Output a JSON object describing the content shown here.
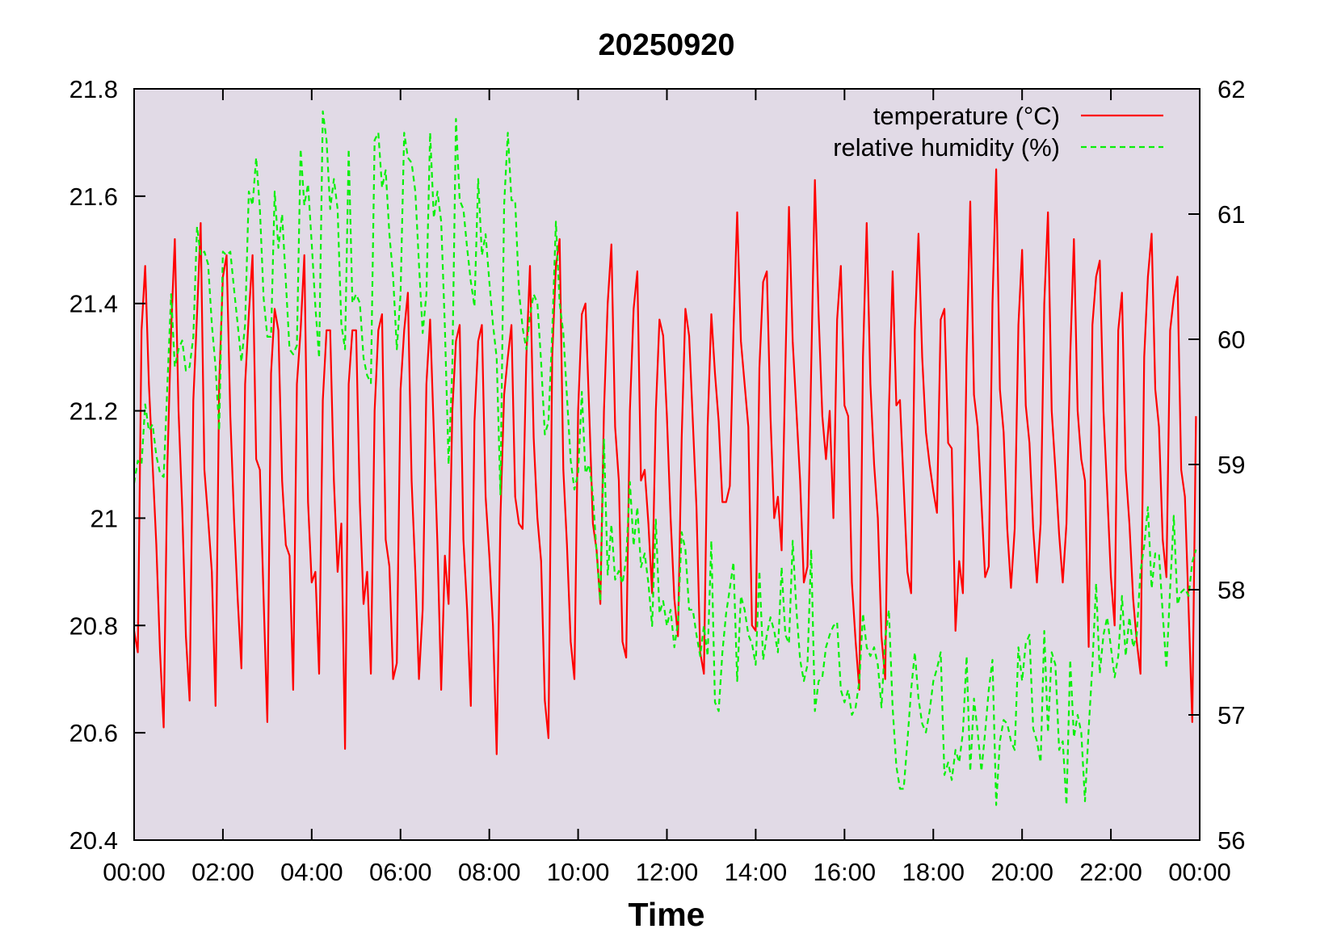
{
  "chart_data": {
    "type": "line",
    "title": "20250920",
    "xlabel": "Time",
    "xlim": [
      "00:00",
      "24:00"
    ],
    "ylim": [
      20.4,
      21.8
    ],
    "y2lim": [
      56,
      62
    ],
    "xticks": [
      "00:00",
      "02:00",
      "04:00",
      "06:00",
      "08:00",
      "10:00",
      "12:00",
      "14:00",
      "16:00",
      "18:00",
      "20:00",
      "22:00",
      "00:00"
    ],
    "yticks": [
      "20.4",
      "20.6",
      "20.8",
      "21",
      "21.2",
      "21.4",
      "21.6",
      "21.8"
    ],
    "y2ticks": [
      "56",
      "57",
      "58",
      "59",
      "60",
      "61",
      "62"
    ],
    "grid": false,
    "legend_position": "top-right",
    "plot_background": "#e1dae6",
    "x": [
      "00:00",
      "00:05",
      "00:10",
      "00:15",
      "00:20",
      "00:25",
      "00:30",
      "00:35",
      "00:40",
      "00:45",
      "00:50",
      "00:55",
      "01:00",
      "01:05",
      "01:10",
      "01:15",
      "01:20",
      "01:25",
      "01:30",
      "01:35",
      "01:40",
      "01:45",
      "01:50",
      "01:55",
      "02:00",
      "02:05",
      "02:10",
      "02:15",
      "02:20",
      "02:25",
      "02:30",
      "02:35",
      "02:40",
      "02:45",
      "02:50",
      "02:55",
      "03:00",
      "03:05",
      "03:10",
      "03:15",
      "03:20",
      "03:25",
      "03:30",
      "03:35",
      "03:40",
      "03:45",
      "03:50",
      "03:55",
      "04:00",
      "04:05",
      "04:10",
      "04:15",
      "04:20",
      "04:25",
      "04:30",
      "04:35",
      "04:40",
      "04:45",
      "04:50",
      "04:55",
      "05:00",
      "05:05",
      "05:10",
      "05:15",
      "05:20",
      "05:25",
      "05:30",
      "05:35",
      "05:40",
      "05:45",
      "05:50",
      "05:55",
      "06:00",
      "06:05",
      "06:10",
      "06:15",
      "06:20",
      "06:25",
      "06:30",
      "06:35",
      "06:40",
      "06:45",
      "06:50",
      "06:55",
      "07:00",
      "07:05",
      "07:10",
      "07:15",
      "07:20",
      "07:25",
      "07:30",
      "07:35",
      "07:40",
      "07:45",
      "07:50",
      "07:55",
      "08:00",
      "08:05",
      "08:10",
      "08:15",
      "08:20",
      "08:25",
      "08:30",
      "08:35",
      "08:40",
      "08:45",
      "08:50",
      "08:55",
      "09:00",
      "09:05",
      "09:10",
      "09:15",
      "09:20",
      "09:25",
      "09:30",
      "09:35",
      "09:40",
      "09:45",
      "09:50",
      "09:55",
      "10:00",
      "10:05",
      "10:10",
      "10:15",
      "10:20",
      "10:25",
      "10:30",
      "10:35",
      "10:40",
      "10:45",
      "10:50",
      "10:55",
      "11:00",
      "11:05",
      "11:10",
      "11:15",
      "11:20",
      "11:25",
      "11:30",
      "11:35",
      "11:40",
      "11:45",
      "11:50",
      "11:55",
      "12:00",
      "12:05",
      "12:10",
      "12:15",
      "12:20",
      "12:25",
      "12:30",
      "12:35",
      "12:40",
      "12:45",
      "12:50",
      "12:55",
      "13:00",
      "13:05",
      "13:10",
      "13:15",
      "13:20",
      "13:25",
      "13:30",
      "13:35",
      "13:40",
      "13:45",
      "13:50",
      "13:55",
      "14:00",
      "14:05",
      "14:10",
      "14:15",
      "14:20",
      "14:25",
      "14:30",
      "14:35",
      "14:40",
      "14:45",
      "14:50",
      "14:55",
      "15:00",
      "15:05",
      "15:10",
      "15:15",
      "15:20",
      "15:25",
      "15:30",
      "15:35",
      "15:40",
      "15:45",
      "15:50",
      "15:55",
      "16:00",
      "16:05",
      "16:10",
      "16:15",
      "16:20",
      "16:25",
      "16:30",
      "16:35",
      "16:40",
      "16:45",
      "16:50",
      "16:55",
      "17:00",
      "17:05",
      "17:10",
      "17:15",
      "17:20",
      "17:25",
      "17:30",
      "17:35",
      "17:40",
      "17:45",
      "17:50",
      "17:55",
      "18:00",
      "18:05",
      "18:10",
      "18:15",
      "18:20",
      "18:25",
      "18:30",
      "18:35",
      "18:40",
      "18:45",
      "18:50",
      "18:55",
      "19:00",
      "19:05",
      "19:10",
      "19:15",
      "19:20",
      "19:25",
      "19:30",
      "19:35",
      "19:40",
      "19:45",
      "19:50",
      "19:55",
      "20:00",
      "20:05",
      "20:10",
      "20:15",
      "20:20",
      "20:25",
      "20:30",
      "20:35",
      "20:40",
      "20:45",
      "20:50",
      "20:55",
      "21:00",
      "21:05",
      "21:10",
      "21:15",
      "21:20",
      "21:25",
      "21:30",
      "21:35",
      "21:40",
      "21:45",
      "21:50",
      "21:55",
      "22:00",
      "22:05",
      "22:10",
      "22:15",
      "22:20",
      "22:25",
      "22:30",
      "22:35",
      "22:40",
      "22:45",
      "22:50",
      "22:55",
      "23:00",
      "23:05",
      "23:10",
      "23:15",
      "23:20",
      "23:25",
      "23:30",
      "23:35",
      "23:40",
      "23:45",
      "23:50",
      "23:55"
    ],
    "series": [
      {
        "name": "temperature (°C)",
        "axis": "left",
        "color": "#ff0000",
        "style": "solid",
        "values": [
          20.79,
          20.75,
          21.35,
          21.47,
          21.25,
          21.1,
          20.95,
          20.75,
          20.61,
          21.1,
          21.35,
          21.52,
          21.2,
          21.02,
          20.78,
          20.66,
          21.22,
          21.38,
          21.55,
          21.09,
          21.0,
          20.9,
          20.65,
          21.25,
          21.45,
          21.49,
          21.19,
          21.0,
          20.85,
          20.72,
          21.25,
          21.38,
          21.49,
          21.11,
          21.09,
          20.85,
          20.62,
          21.27,
          21.39,
          21.35,
          21.07,
          20.95,
          20.93,
          20.68,
          21.25,
          21.35,
          21.49,
          21.03,
          20.88,
          20.9,
          20.71,
          21.22,
          21.35,
          21.35,
          21.07,
          20.9,
          20.99,
          20.57,
          21.25,
          21.35,
          21.35,
          21.03,
          20.84,
          20.9,
          20.71,
          21.2,
          21.35,
          21.38,
          20.96,
          20.91,
          20.7,
          20.73,
          21.24,
          21.35,
          21.42,
          21.07,
          20.9,
          20.7,
          20.83,
          21.25,
          21.37,
          21.16,
          20.95,
          20.68,
          20.93,
          20.84,
          21.2,
          21.33,
          21.36,
          20.96,
          20.83,
          20.65,
          21.18,
          21.33,
          21.36,
          21.04,
          20.93,
          20.8,
          20.56,
          21.0,
          21.23,
          21.3,
          21.36,
          21.04,
          20.99,
          20.98,
          21.3,
          21.47,
          21.15,
          21.0,
          20.92,
          20.66,
          20.59,
          21.3,
          21.47,
          21.52,
          21.09,
          20.95,
          20.77,
          20.7,
          21.2,
          21.38,
          21.4,
          21.2,
          20.99,
          20.94,
          20.84,
          21.2,
          21.4,
          21.51,
          21.17,
          21.07,
          20.77,
          20.74,
          21.2,
          21.39,
          21.46,
          21.07,
          21.09,
          20.99,
          20.86,
          21.2,
          21.37,
          21.34,
          21.19,
          21.0,
          20.85,
          20.78,
          21.15,
          21.39,
          21.34,
          21.18,
          21.02,
          20.75,
          20.71,
          21.17,
          21.38,
          21.27,
          21.18,
          21.03,
          21.03,
          21.06,
          21.35,
          21.57,
          21.33,
          21.25,
          21.17,
          20.8,
          20.79,
          21.28,
          21.44,
          21.46,
          21.19,
          21.0,
          21.04,
          20.94,
          21.28,
          21.58,
          21.33,
          21.2,
          21.07,
          20.88,
          20.91,
          21.28,
          21.63,
          21.38,
          21.19,
          21.11,
          21.2,
          21.0,
          21.37,
          21.47,
          21.21,
          21.19,
          20.88,
          20.77,
          20.68,
          21.3,
          21.55,
          21.25,
          21.1,
          21.0,
          20.78,
          20.7,
          21.2,
          21.46,
          21.21,
          21.22,
          21.06,
          20.9,
          20.86,
          21.35,
          21.53,
          21.3,
          21.16,
          21.1,
          21.05,
          21.01,
          21.37,
          21.39,
          21.14,
          21.13,
          20.79,
          20.92,
          20.86,
          21.3,
          21.59,
          21.23,
          21.17,
          21.03,
          20.89,
          20.91,
          21.4,
          21.65,
          21.24,
          21.16,
          20.98,
          20.87,
          20.98,
          21.36,
          21.5,
          21.21,
          21.14,
          20.98,
          20.88,
          20.99,
          21.4,
          21.57,
          21.2,
          21.09,
          20.97,
          20.88,
          20.99,
          21.3,
          21.52,
          21.2,
          21.11,
          21.07,
          20.76,
          21.36,
          21.45,
          21.48,
          21.2,
          21.05,
          20.89,
          20.8,
          21.35,
          21.42,
          21.09,
          20.99,
          20.85,
          20.77,
          20.71,
          21.3,
          21.45,
          21.53,
          21.24,
          21.17,
          20.96,
          20.89,
          21.35,
          21.41,
          21.45,
          21.09,
          21.04,
          20.83,
          20.62,
          21.19
        ]
      },
      {
        "name": "relative humidity (%)",
        "axis": "right",
        "color": "#08f008",
        "style": "dashed",
        "values": [
          58.85,
          59.03,
          59.0,
          59.48,
          59.27,
          59.32,
          59.07,
          58.93,
          58.9,
          59.64,
          60.36,
          59.78,
          59.92,
          59.99,
          59.75,
          59.78,
          60.02,
          60.9,
          60.67,
          60.7,
          60.6,
          60.12,
          59.78,
          59.27,
          60.7,
          60.67,
          60.7,
          60.4,
          60.12,
          59.82,
          60.12,
          61.18,
          61.07,
          61.45,
          61.04,
          60.33,
          60.02,
          60.02,
          61.18,
          60.73,
          61.0,
          60.46,
          59.92,
          59.88,
          59.95,
          61.52,
          61.07,
          61.24,
          60.77,
          60.26,
          59.85,
          61.82,
          61.59,
          61.04,
          61.28,
          61.04,
          60.12,
          59.92,
          61.52,
          60.29,
          60.36,
          60.29,
          59.85,
          59.71,
          59.65,
          61.59,
          61.65,
          61.21,
          61.35,
          60.84,
          60.5,
          59.92,
          60.36,
          61.65,
          61.45,
          61.41,
          61.18,
          60.6,
          60.05,
          60.36,
          61.65,
          60.97,
          61.18,
          60.94,
          60.09,
          59.0,
          59.78,
          61.76,
          61.11,
          61.04,
          60.73,
          60.46,
          60.26,
          61.28,
          60.67,
          60.84,
          60.46,
          60.12,
          59.85,
          58.76,
          61.07,
          61.65,
          61.11,
          61.11,
          60.39,
          60.09,
          59.92,
          60.19,
          60.36,
          60.29,
          59.82,
          59.24,
          59.34,
          60.05,
          60.94,
          60.29,
          60.05,
          59.54,
          59.03,
          58.8,
          58.93,
          59.58,
          58.93,
          59.0,
          58.76,
          58.29,
          57.91,
          59.2,
          58.12,
          58.52,
          58.08,
          58.15,
          58.05,
          58.25,
          58.86,
          58.35,
          58.66,
          58.18,
          58.29,
          58.05,
          57.71,
          58.56,
          57.81,
          57.91,
          57.71,
          57.84,
          57.54,
          57.74,
          58.46,
          58.32,
          57.84,
          57.84,
          57.64,
          57.47,
          57.71,
          57.47,
          58.39,
          57.1,
          57.03,
          57.5,
          57.81,
          58.01,
          58.22,
          57.27,
          57.95,
          57.84,
          57.64,
          57.57,
          57.4,
          58.15,
          57.44,
          57.64,
          57.78,
          57.67,
          57.5,
          58.18,
          57.64,
          57.57,
          58.39,
          57.84,
          57.44,
          57.27,
          57.4,
          58.32,
          57.03,
          57.27,
          57.3,
          57.54,
          57.64,
          57.71,
          57.74,
          57.2,
          57.1,
          57.2,
          57.0,
          57.06,
          57.27,
          57.81,
          57.54,
          57.47,
          57.54,
          57.4,
          57.06,
          57.61,
          57.84,
          57.06,
          56.59,
          56.41,
          56.41,
          56.79,
          57.2,
          57.5,
          57.13,
          56.93,
          56.86,
          57.03,
          57.27,
          57.37,
          57.5,
          56.52,
          56.62,
          56.48,
          56.72,
          56.62,
          56.86,
          57.47,
          56.55,
          57.13,
          56.86,
          56.55,
          56.86,
          57.2,
          57.44,
          56.28,
          56.79,
          56.96,
          56.93,
          56.79,
          56.72,
          57.54,
          57.27,
          57.57,
          57.64,
          56.89,
          56.79,
          56.62,
          57.67,
          56.86,
          57.5,
          57.4,
          56.72,
          56.79,
          56.28,
          57.44,
          56.82,
          57.0,
          56.86,
          56.31,
          56.89,
          57.4,
          58.05,
          57.33,
          57.64,
          57.78,
          57.54,
          57.3,
          57.47,
          57.95,
          57.47,
          57.78,
          57.54,
          57.64,
          58.15,
          58.35,
          58.66,
          58.01,
          58.29,
          58.29,
          57.81,
          57.37,
          58.01,
          58.59,
          57.88,
          57.98,
          58.01,
          57.95,
          58.22,
          58.32
        ]
      }
    ]
  }
}
